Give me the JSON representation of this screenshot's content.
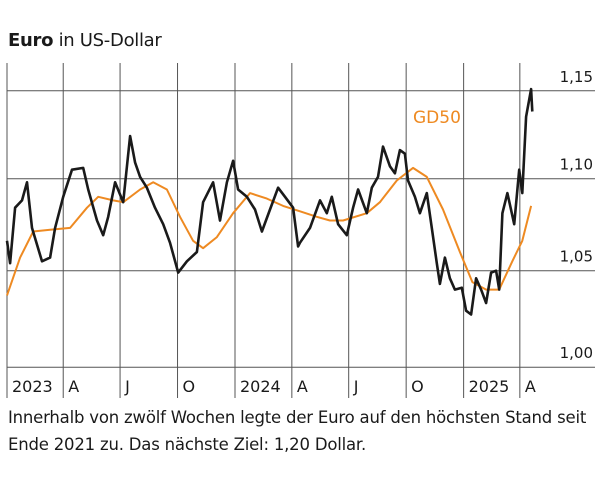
{
  "chart_data": {
    "type": "line",
    "title_bold": "Euro",
    "title_rest": "in US-Dollar",
    "caption": "Innerhalb von zwölf Wochen legte der Euro auf den höchsten Stand seit Ende 2021 zu. Das nächste Ziel: 1,20 Dollar.",
    "y_scale": "log",
    "ylim": [
      1.0,
      1.165
    ],
    "xlim": [
      "2023-01-01",
      "2025-05-08"
    ],
    "y_ticks": [
      {
        "value": 1.0,
        "label": "1,00"
      },
      {
        "value": 1.05,
        "label": "1,05"
      },
      {
        "value": 1.1,
        "label": "1,10"
      },
      {
        "value": 1.15,
        "label": "1,15"
      }
    ],
    "x_ticks": [
      {
        "date": "2023-01-01",
        "label": "2023"
      },
      {
        "date": "2023-04-01",
        "label": "A"
      },
      {
        "date": "2023-07-01",
        "label": "J"
      },
      {
        "date": "2023-10-01",
        "label": "O"
      },
      {
        "date": "2024-01-01",
        "label": "2024"
      },
      {
        "date": "2024-04-01",
        "label": "A"
      },
      {
        "date": "2024-07-01",
        "label": "J"
      },
      {
        "date": "2024-10-01",
        "label": "O"
      },
      {
        "date": "2025-01-01",
        "label": "2025"
      },
      {
        "date": "2025-04-01",
        "label": "A"
      }
    ],
    "grid": true,
    "colors": {
      "euro": "#1a1a1a",
      "gd50": "#ee8a22",
      "grid": "#555555"
    },
    "series": [
      {
        "key": "euro",
        "points": [
          [
            "2023-01-01",
            1.066
          ],
          [
            "2023-01-06",
            1.054
          ],
          [
            "2023-01-14",
            1.084
          ],
          [
            "2023-01-25",
            1.088
          ],
          [
            "2023-02-02",
            1.098
          ],
          [
            "2023-02-10",
            1.073
          ],
          [
            "2023-02-26",
            1.055
          ],
          [
            "2023-03-11",
            1.057
          ],
          [
            "2023-03-19",
            1.073
          ],
          [
            "2023-04-01",
            1.09
          ],
          [
            "2023-04-15",
            1.105
          ],
          [
            "2023-05-03",
            1.106
          ],
          [
            "2023-05-11",
            1.094
          ],
          [
            "2023-05-25",
            1.077
          ],
          [
            "2023-06-04",
            1.069
          ],
          [
            "2023-06-12",
            1.079
          ],
          [
            "2023-06-23",
            1.098
          ],
          [
            "2023-07-06",
            1.087
          ],
          [
            "2023-07-17",
            1.124
          ],
          [
            "2023-07-25",
            1.109
          ],
          [
            "2023-08-02",
            1.101
          ],
          [
            "2023-08-13",
            1.095
          ],
          [
            "2023-08-26",
            1.084
          ],
          [
            "2023-09-08",
            1.075
          ],
          [
            "2023-09-19",
            1.065
          ],
          [
            "2023-10-02",
            1.049
          ],
          [
            "2023-10-16",
            1.055
          ],
          [
            "2023-11-01",
            1.06
          ],
          [
            "2023-11-11",
            1.087
          ],
          [
            "2023-11-27",
            1.098
          ],
          [
            "2023-12-08",
            1.077
          ],
          [
            "2023-12-19",
            1.098
          ],
          [
            "2023-12-29",
            1.11
          ],
          [
            "2024-01-06",
            1.094
          ],
          [
            "2024-01-20",
            1.09
          ],
          [
            "2024-02-02",
            1.083
          ],
          [
            "2024-02-13",
            1.071
          ],
          [
            "2024-02-26",
            1.083
          ],
          [
            "2024-03-10",
            1.095
          ],
          [
            "2024-03-21",
            1.09
          ],
          [
            "2024-04-03",
            1.084
          ],
          [
            "2024-04-11",
            1.063
          ],
          [
            "2024-04-14",
            1.065
          ],
          [
            "2024-04-30",
            1.073
          ],
          [
            "2024-05-16",
            1.088
          ],
          [
            "2024-05-27",
            1.081
          ],
          [
            "2024-06-04",
            1.09
          ],
          [
            "2024-06-14",
            1.075
          ],
          [
            "2024-06-28",
            1.069
          ],
          [
            "2024-07-08",
            1.084
          ],
          [
            "2024-07-16",
            1.094
          ],
          [
            "2024-07-30",
            1.081
          ],
          [
            "2024-08-07",
            1.095
          ],
          [
            "2024-08-17",
            1.101
          ],
          [
            "2024-08-25",
            1.118
          ],
          [
            "2024-09-05",
            1.107
          ],
          [
            "2024-09-13",
            1.103
          ],
          [
            "2024-09-21",
            1.116
          ],
          [
            "2024-09-29",
            1.114
          ],
          [
            "2024-10-04",
            1.099
          ],
          [
            "2024-10-15",
            1.09
          ],
          [
            "2024-10-23",
            1.081
          ],
          [
            "2024-11-03",
            1.092
          ],
          [
            "2024-11-11",
            1.073
          ],
          [
            "2024-11-19",
            1.054
          ],
          [
            "2024-11-24",
            1.043
          ],
          [
            "2024-12-02",
            1.057
          ],
          [
            "2024-12-10",
            1.046
          ],
          [
            "2024-12-18",
            1.04
          ],
          [
            "2024-12-29",
            1.041
          ],
          [
            "2025-01-05",
            1.029
          ],
          [
            "2025-01-13",
            1.027
          ],
          [
            "2025-01-21",
            1.046
          ],
          [
            "2025-01-29",
            1.04
          ],
          [
            "2025-02-06",
            1.033
          ],
          [
            "2025-02-14",
            1.049
          ],
          [
            "2025-02-22",
            1.05
          ],
          [
            "2025-02-27",
            1.04
          ],
          [
            "2025-03-04",
            1.081
          ],
          [
            "2025-03-12",
            1.092
          ],
          [
            "2025-03-23",
            1.075
          ],
          [
            "2025-03-31",
            1.105
          ],
          [
            "2025-04-05",
            1.092
          ],
          [
            "2025-04-11",
            1.135
          ],
          [
            "2025-04-19",
            1.151
          ],
          [
            "2025-04-21",
            1.138
          ]
        ]
      },
      {
        "key": "gd50",
        "name": "GD50",
        "points": [
          [
            "2023-01-01",
            1.037
          ],
          [
            "2023-01-22",
            1.057
          ],
          [
            "2023-02-12",
            1.071
          ],
          [
            "2023-03-11",
            1.072
          ],
          [
            "2023-04-12",
            1.073
          ],
          [
            "2023-05-09",
            1.084
          ],
          [
            "2023-05-27",
            1.09
          ],
          [
            "2023-06-20",
            1.088
          ],
          [
            "2023-07-06",
            1.087
          ],
          [
            "2023-08-02",
            1.094
          ],
          [
            "2023-08-23",
            1.098
          ],
          [
            "2023-09-14",
            1.094
          ],
          [
            "2023-10-05",
            1.079
          ],
          [
            "2023-10-26",
            1.066
          ],
          [
            "2023-11-11",
            1.062
          ],
          [
            "2023-12-03",
            1.068
          ],
          [
            "2023-12-29",
            1.081
          ],
          [
            "2024-01-25",
            1.092
          ],
          [
            "2024-02-21",
            1.089
          ],
          [
            "2024-03-18",
            1.085
          ],
          [
            "2024-04-14",
            1.082
          ],
          [
            "2024-05-11",
            1.079
          ],
          [
            "2024-06-01",
            1.077
          ],
          [
            "2024-06-22",
            1.077
          ],
          [
            "2024-07-30",
            1.081
          ],
          [
            "2024-08-20",
            1.087
          ],
          [
            "2024-09-16",
            1.099
          ],
          [
            "2024-10-12",
            1.106
          ],
          [
            "2024-11-03",
            1.101
          ],
          [
            "2024-11-29",
            1.083
          ],
          [
            "2024-12-26",
            1.06
          ],
          [
            "2025-01-15",
            1.044
          ],
          [
            "2025-02-06",
            1.04
          ],
          [
            "2025-02-27",
            1.04
          ],
          [
            "2025-03-20",
            1.055
          ],
          [
            "2025-04-05",
            1.066
          ],
          [
            "2025-04-19",
            1.085
          ]
        ]
      }
    ]
  }
}
